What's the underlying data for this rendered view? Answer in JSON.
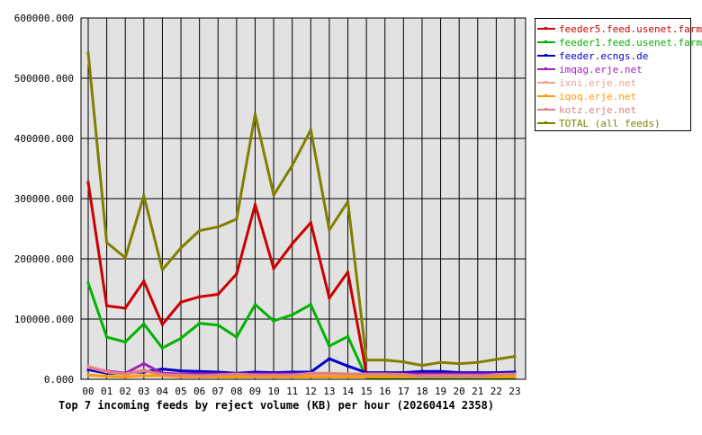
{
  "chart_data": {
    "type": "line",
    "title": "Top 7 incoming feeds by reject volume (KB) per hour (20260414 2358)",
    "xlabel": "",
    "ylabel": "",
    "ylim": [
      0,
      600000
    ],
    "y_ticks": [
      "0.000",
      "100000.000",
      "200000.000",
      "300000.000",
      "400000.000",
      "500000.000",
      "600000.000"
    ],
    "categories": [
      "00",
      "01",
      "02",
      "03",
      "04",
      "05",
      "06",
      "07",
      "08",
      "09",
      "10",
      "11",
      "12",
      "13",
      "14",
      "15",
      "16",
      "17",
      "18",
      "19",
      "20",
      "21",
      "22",
      "23"
    ],
    "grid": true,
    "legend_position": "top-right",
    "series": [
      {
        "name": "feeder5.feed.usenet.farm",
        "color": "#cc0000",
        "values": [
          327000,
          122000,
          118000,
          163000,
          91000,
          128000,
          137000,
          141000,
          175000,
          290000,
          184000,
          225000,
          260000,
          135000,
          178000,
          10000,
          9000,
          8000,
          7000,
          6000,
          6000,
          6000,
          7000,
          8000
        ]
      },
      {
        "name": "feeder1.feed.usenet.farm",
        "color": "#00b400",
        "values": [
          160000,
          70000,
          62000,
          92000,
          52000,
          68000,
          93000,
          90000,
          70000,
          124000,
          97000,
          107000,
          124000,
          55000,
          71000,
          3000,
          3000,
          3000,
          3000,
          3000,
          3000,
          3000,
          3000,
          3000
        ]
      },
      {
        "name": "feeder.ecngs.de",
        "color": "#0000cc",
        "values": [
          16000,
          10000,
          10000,
          12000,
          17000,
          14000,
          13000,
          12000,
          10000,
          12000,
          11000,
          12000,
          12000,
          34000,
          22000,
          11000,
          11000,
          11000,
          13000,
          13000,
          11000,
          11000,
          11000,
          12000
        ]
      },
      {
        "name": "imqag.erje.net",
        "color": "#a020c0",
        "values": [
          19000,
          14000,
          10000,
          26000,
          10000,
          9000,
          9000,
          9000,
          9000,
          9000,
          9000,
          9000,
          9000,
          9000,
          9000,
          9000,
          9000,
          9000,
          9000,
          9000,
          9000,
          9000,
          9000,
          9000
        ]
      },
      {
        "name": "ixni.erje.net",
        "color": "#f0a090",
        "values": [
          22000,
          13000,
          8000,
          14000,
          7000,
          6000,
          5000,
          6000,
          6000,
          6000,
          6000,
          6000,
          6000,
          6000,
          6000,
          6000,
          6000,
          6000,
          6000,
          6000,
          6000,
          6000,
          6000,
          6000
        ]
      },
      {
        "name": "iqoq.erje.net",
        "color": "#ff9900",
        "values": [
          7000,
          5000,
          4000,
          6000,
          6000,
          4000,
          4000,
          4000,
          4000,
          4000,
          4000,
          4000,
          4000,
          4000,
          4000,
          4000,
          4000,
          4000,
          4000,
          4000,
          4000,
          4000,
          4000,
          4000
        ]
      },
      {
        "name": "kotz.erje.net",
        "color": "#e08080",
        "values": [
          20000,
          12000,
          9000,
          15000,
          8000,
          7000,
          6000,
          7000,
          9000,
          7000,
          7000,
          7000,
          10000,
          10000,
          9000,
          9000,
          9000,
          8000,
          5000,
          5000,
          5000,
          5000,
          8000,
          9000
        ]
      },
      {
        "name": "TOTAL (all feeds)",
        "color": "#808000",
        "values": [
          542000,
          227000,
          202000,
          305000,
          182000,
          218000,
          247000,
          253000,
          266000,
          440000,
          306000,
          355000,
          414000,
          248000,
          295000,
          32000,
          32000,
          29000,
          23000,
          28000,
          26000,
          28000,
          33000,
          38000
        ]
      }
    ]
  }
}
